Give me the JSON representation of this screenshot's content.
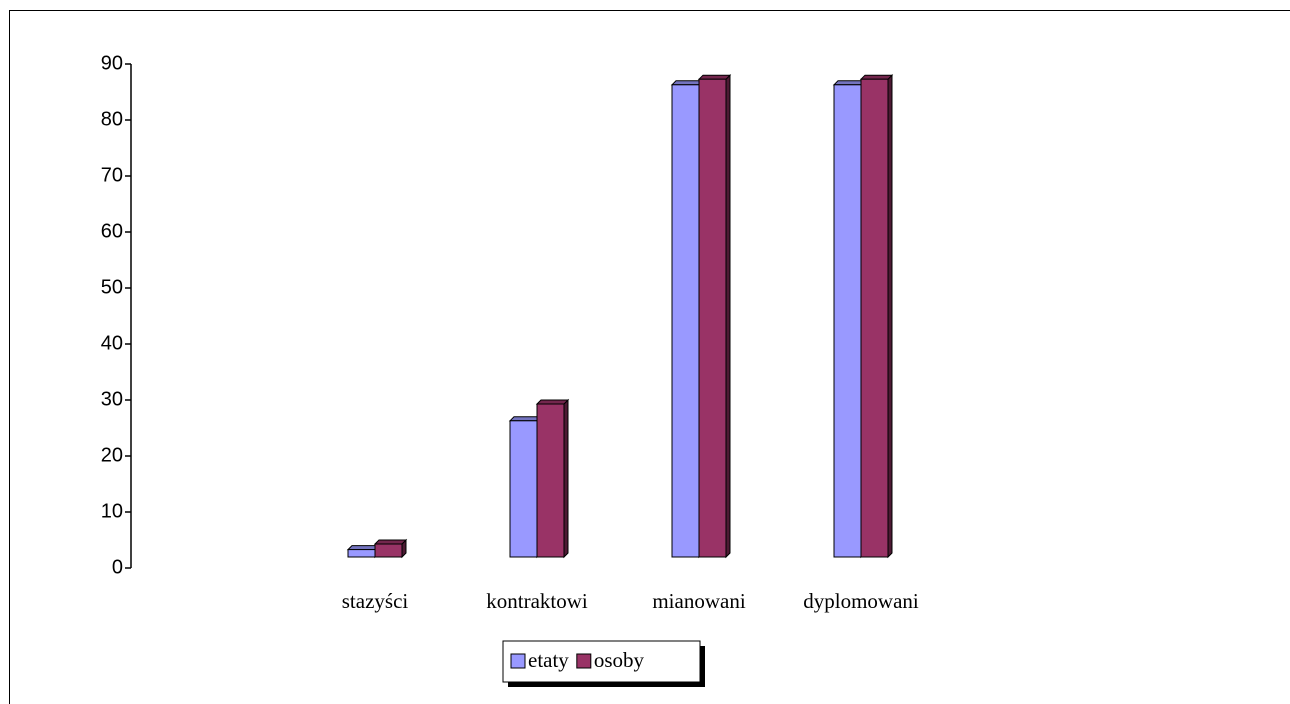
{
  "chart_data": {
    "type": "bar",
    "categories": [
      "stazyści",
      "kontraktowi",
      "mianowani",
      "dyplomowani"
    ],
    "series": [
      {
        "name": "etaty",
        "color": "#9999ff",
        "values": [
          4,
          27,
          87,
          87
        ]
      },
      {
        "name": "osoby",
        "color": "#993366",
        "values": [
          5,
          30,
          88,
          88
        ]
      }
    ],
    "ylim": [
      0,
      90
    ],
    "yticks": [
      0,
      10,
      20,
      30,
      40,
      50,
      60,
      70,
      80,
      90
    ],
    "legend": "bottom"
  }
}
